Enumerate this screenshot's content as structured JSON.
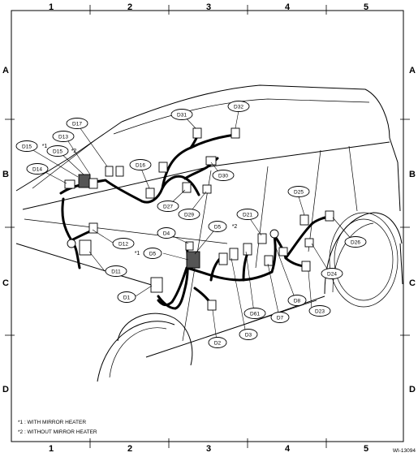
{
  "grid": {
    "columns": [
      "1",
      "2",
      "3",
      "4",
      "5"
    ],
    "rows": [
      "A",
      "B",
      "C",
      "D"
    ]
  },
  "callouts": {
    "D1": "D1",
    "D2": "D2",
    "D3": "D3",
    "D4": "D4",
    "D5a": "D5",
    "D5b": "D5",
    "D7": "D7",
    "D8": "D8",
    "D11": "D11",
    "D12": "D12",
    "D13": "D13",
    "D14": "D14",
    "D15a": "D15",
    "D15b": "D15",
    "D16": "D16",
    "D17": "D17",
    "D21": "D21",
    "D23": "D23",
    "D24": "D24",
    "D25": "D25",
    "D26": "D26",
    "D27": "D27",
    "D29": "D29",
    "D30": "D30",
    "D31": "D31",
    "D32": "D32",
    "D61": "D61"
  },
  "stars": {
    "D15a": "*1",
    "D15b": "*2",
    "D5a": "*1",
    "D5b": "*2"
  },
  "legend": {
    "with_mirror_heater": "*1 : WITH MIRROR HEATER",
    "without_mirror_heater": "*2 : WITHOUT MIRROR HEATER"
  },
  "figure_id": "WI-13094"
}
